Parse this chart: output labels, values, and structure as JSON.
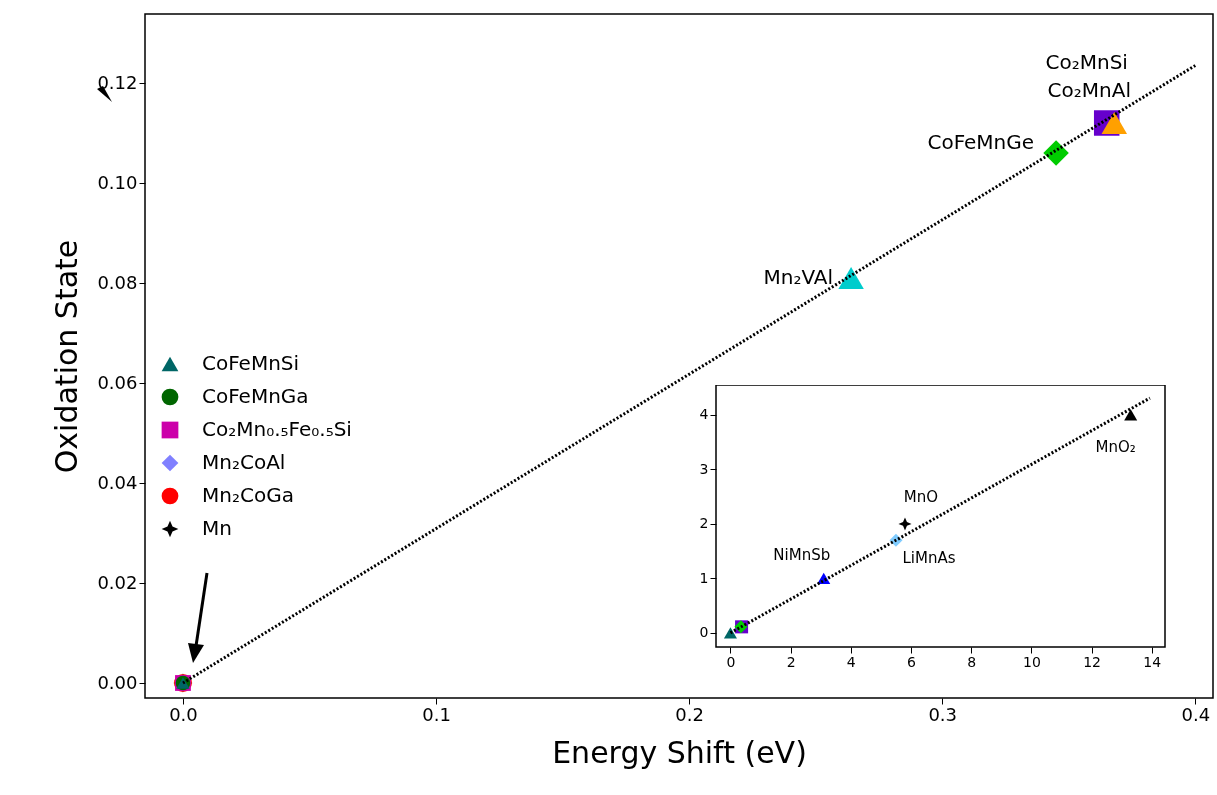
{
  "chart_data": [
    {
      "type": "scatter",
      "xlabel": "Energy Shift (eV)",
      "ylabel": "Oxidation State",
      "xlim": [
        -0.015,
        0.407
      ],
      "ylim": [
        -0.003,
        0.1338
      ],
      "xticks": [
        {
          "value": 0,
          "label": "0.0"
        },
        {
          "value": 0.1,
          "label": "0.1"
        },
        {
          "value": 0.2,
          "label": "0.2"
        },
        {
          "value": 0.3,
          "label": "0.3"
        },
        {
          "value": 0.4,
          "label": "0.4"
        }
      ],
      "yticks": [
        {
          "value": 0,
          "label": "0.00"
        },
        {
          "value": 0.02,
          "label": "0.02"
        },
        {
          "value": 0.04,
          "label": "0.04"
        },
        {
          "value": 0.06,
          "label": "0.06"
        },
        {
          "value": 0.08,
          "label": "0.08"
        },
        {
          "value": 0.1,
          "label": "0.10"
        },
        {
          "value": 0.12,
          "label": "0.12"
        }
      ],
      "legend": "left",
      "series": [
        {
          "name": "CoFeMnSi",
          "color": "#006666",
          "marker": "triangle",
          "x": [
            0
          ],
          "values": [
            0
          ]
        },
        {
          "name": "CoFeMnGa",
          "color": "#006600",
          "marker": "circle",
          "x": [
            0
          ],
          "values": [
            0
          ]
        },
        {
          "name": "Co₂Mn₀.₅Fe₀.₅Si",
          "color": "#cc00aa",
          "marker": "square",
          "x": [
            0
          ],
          "values": [
            0
          ]
        },
        {
          "name": "Mn₂CoAl",
          "color": "#8080ff",
          "marker": "diamond",
          "x": [
            0
          ],
          "values": [
            0
          ]
        },
        {
          "name": "Mn₂CoGa",
          "color": "#ff0000",
          "marker": "circle",
          "x": [
            0
          ],
          "values": [
            0
          ]
        },
        {
          "name": "Mn",
          "color": "#000000",
          "marker": "star",
          "x": [
            0
          ],
          "values": [
            0
          ]
        },
        {
          "color": "#00cccc",
          "marker": "triangle",
          "x": [
            0.264
          ],
          "values": [
            0.081
          ]
        },
        {
          "color": "#00cc00",
          "marker": "diamond",
          "x": [
            0.345
          ],
          "values": [
            0.106
          ]
        },
        {
          "color": "#6600cc",
          "marker": "square",
          "x": [
            0.365
          ],
          "values": [
            0.112
          ]
        },
        {
          "color": "#ffa000",
          "marker": "triangle",
          "x": [
            0.368
          ],
          "values": [
            0.112
          ]
        },
        {
          "type": "line",
          "color": "#000000",
          "line_style": "dotted",
          "x": [
            0,
            0.4
          ],
          "values": [
            0,
            0.1235
          ]
        }
      ],
      "annotations": [
        {
          "text": "Mn₂VAl",
          "x": 0.264,
          "y": 0.081
        },
        {
          "text": "CoFeMnGe",
          "x": 0.345,
          "y": 0.106
        },
        {
          "text": "Co₂MnSi",
          "x": 0.365,
          "y": 0.112
        },
        {
          "text": "Co₂MnAl",
          "x": 0.368,
          "y": 0.112
        }
      ]
    },
    {
      "type": "scatter",
      "xlim": [
        -0.48,
        14.44
      ],
      "ylim": [
        -0.26,
        4.55
      ],
      "xticks": [
        0,
        2,
        4,
        6,
        8,
        10,
        12,
        14
      ],
      "yticks": [
        0,
        1,
        2,
        3,
        4
      ],
      "tick_labels": "xy",
      "series": [
        {
          "color": "#006666",
          "marker": "triangle",
          "x": [
            0
          ],
          "values": [
            0
          ]
        },
        {
          "color": "#6600cc",
          "marker": "square",
          "x": [
            0.37
          ],
          "values": [
            0.11
          ]
        },
        {
          "color": "#00cc00",
          "marker": "diamond",
          "x": [
            0.35
          ],
          "values": [
            0.11
          ]
        },
        {
          "color": "#000000",
          "marker": "triangle",
          "x": [
            13.3
          ],
          "values": [
            4.0
          ]
        },
        {
          "color": "#000000",
          "marker": "star",
          "x": [
            5.8
          ],
          "values": [
            2.0
          ]
        },
        {
          "color": "#80ccff",
          "marker": "diamond",
          "x": [
            5.5
          ],
          "values": [
            1.7
          ]
        },
        {
          "color": "#0000ff",
          "marker": "triangle",
          "x": [
            3.1
          ],
          "values": [
            1.0
          ]
        },
        {
          "type": "line",
          "color": "#000000",
          "line_style": "dotted",
          "x": [
            0,
            13.94
          ],
          "values": [
            0,
            4.31
          ]
        }
      ],
      "annotations": [
        {
          "text": "MnO₂",
          "x": 13.3,
          "y": 4.0
        },
        {
          "text": "MnO",
          "x": 5.8,
          "y": 2.0
        },
        {
          "text": "LiMnAs",
          "x": 5.5,
          "y": 1.7
        },
        {
          "text": "NiMnSb",
          "x": 3.1,
          "y": 1.0
        }
      ]
    }
  ]
}
